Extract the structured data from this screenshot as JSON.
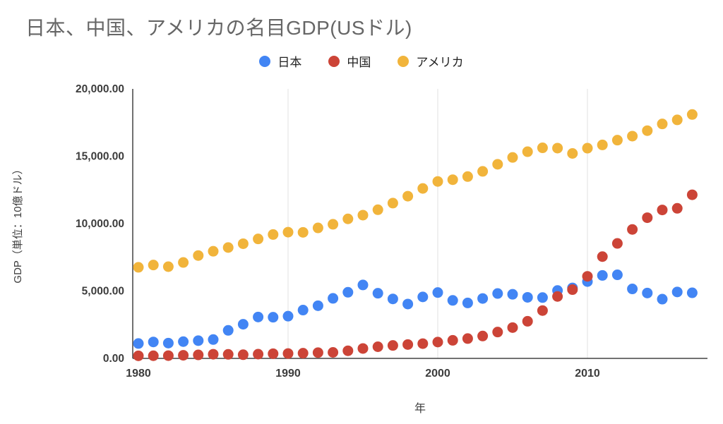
{
  "title": "日本、中国、アメリカの名目GDP(USドル)",
  "legend": [
    {
      "label": "日本",
      "color": "#4285F4"
    },
    {
      "label": "中国",
      "color": "#CC4437"
    },
    {
      "label": "アメリカ",
      "color": "#F1B43B"
    }
  ],
  "chart_data": {
    "type": "scatter",
    "title": "日本、中国、アメリカの名目GDP(USドル)",
    "xlabel": "年",
    "ylabel": "GDP（単位：10億ドル）",
    "x_range": [
      1980,
      2017
    ],
    "ylim": [
      0,
      20000
    ],
    "grid": "vertical-only",
    "legend_position": "top",
    "x": [
      1980,
      1981,
      1982,
      1983,
      1984,
      1985,
      1986,
      1987,
      1988,
      1989,
      1990,
      1991,
      1992,
      1993,
      1994,
      1995,
      1996,
      1997,
      1998,
      1999,
      2000,
      2001,
      2002,
      2003,
      2004,
      2005,
      2006,
      2007,
      2008,
      2009,
      2010,
      2011,
      2012,
      2013,
      2014,
      2015,
      2016,
      2017
    ],
    "series": [
      {
        "name": "日本",
        "color": "#4285F4",
        "values": [
          1105,
          1219,
          1134,
          1243,
          1318,
          1398,
          2079,
          2533,
          3072,
          3054,
          3133,
          3584,
          3909,
          4454,
          4907,
          5449,
          4834,
          4414,
          4032,
          4562,
          4888,
          4304,
          4115,
          4446,
          4815,
          4755,
          4530,
          4515,
          5038,
          5231,
          5700,
          6157,
          6203,
          5156,
          4850,
          4395,
          4931,
          4867
        ]
      },
      {
        "name": "中国",
        "color": "#CC4437",
        "values": [
          191,
          196,
          205,
          231,
          260,
          310,
          300,
          272,
          312,
          348,
          361,
          383,
          427,
          445,
          564,
          734,
          864,
          961,
          1029,
          1094,
          1211,
          1339,
          1471,
          1660,
          1955,
          2286,
          2752,
          3550,
          4594,
          5102,
          6087,
          7552,
          8532,
          9570,
          10439,
          11016,
          11138,
          12143
        ]
      },
      {
        "name": "アメリカ",
        "color": "#F1B43B",
        "values": [
          6759,
          6931,
          6806,
          7118,
          7633,
          7951,
          8226,
          8511,
          8867,
          9192,
          9366,
          9355,
          9685,
          9952,
          10353,
          10630,
          11031,
          11522,
          12038,
          12611,
          13131,
          13262,
          13493,
          13879,
          14406,
          14913,
          15338,
          15626,
          15605,
          15209,
          15599,
          15841,
          16197,
          16495,
          16900,
          17400,
          17700,
          18100
        ]
      }
    ],
    "yticks": {
      "values": [
        0,
        5000,
        10000,
        15000,
        20000
      ],
      "labels": [
        "0.00",
        "5,000.00",
        "10,000.00",
        "15,000.00",
        "20,000.00"
      ]
    },
    "xticks": {
      "values": [
        1980,
        1990,
        2000,
        2010
      ],
      "labels": [
        "1980",
        "1990",
        "2000",
        "2010"
      ]
    }
  },
  "style": {
    "axis_text_color": "#3c3c3c",
    "grid_color": "#e0e0e0",
    "axis_line_color": "#424242",
    "point_radius": 7.5
  }
}
